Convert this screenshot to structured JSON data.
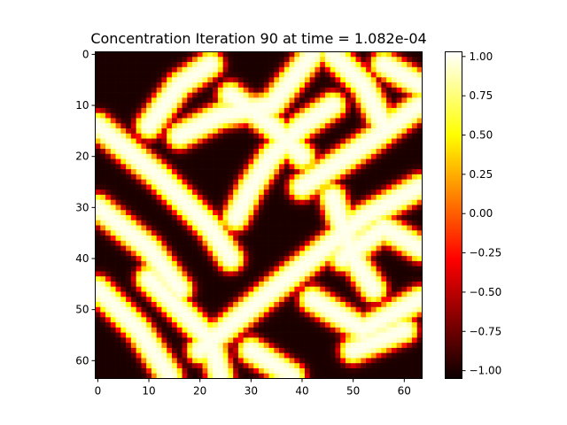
{
  "chart_data": {
    "type": "heatmap",
    "title": "Concentration Iteration 90 at time = 1.082e-04",
    "xlabel": "",
    "ylabel": "",
    "grid_size": 64,
    "xlim": [
      -0.5,
      63.5
    ],
    "ylim": [
      63.5,
      -0.5
    ],
    "x_ticks": [
      "0",
      "10",
      "20",
      "30",
      "40",
      "50",
      "60"
    ],
    "y_ticks": [
      "0",
      "10",
      "20",
      "30",
      "40",
      "50",
      "60"
    ],
    "colormap": "hot",
    "vmin": -1.05,
    "vmax": 1.03,
    "colorbar_ticks": [
      "1.00",
      "0.75",
      "0.50",
      "0.25",
      "0.00",
      "−0.25",
      "−0.50",
      "−0.75",
      "−1.00"
    ],
    "colors": {
      "low": "#0b0000",
      "mid_red": "#e60000",
      "mid_yellow": "#ffff20",
      "high": "#ffffff"
    },
    "bright_bands_approx": [
      {
        "note": "approximate ridges of high concentration, data units (x=col, y=row)",
        "pts": [
          [
            0,
            14
          ],
          [
            12,
            24
          ],
          [
            22,
            34
          ],
          [
            26,
            40
          ]
        ]
      },
      {
        "pts": [
          [
            0,
            30
          ],
          [
            10,
            38
          ],
          [
            16,
            46
          ]
        ]
      },
      {
        "pts": [
          [
            0,
            46
          ],
          [
            8,
            54
          ],
          [
            14,
            63
          ]
        ]
      },
      {
        "pts": [
          [
            10,
            44
          ],
          [
            22,
            56
          ],
          [
            24,
            63
          ]
        ]
      },
      {
        "pts": [
          [
            20,
            58
          ],
          [
            32,
            48
          ],
          [
            42,
            40
          ],
          [
            52,
            32
          ],
          [
            63,
            26
          ]
        ]
      },
      {
        "pts": [
          [
            27,
            32
          ],
          [
            30,
            26
          ],
          [
            34,
            20
          ],
          [
            40,
            14
          ],
          [
            46,
            10
          ]
        ]
      },
      {
        "pts": [
          [
            40,
            26
          ],
          [
            52,
            18
          ],
          [
            63,
            10
          ]
        ]
      },
      {
        "pts": [
          [
            46,
            28
          ],
          [
            50,
            40
          ],
          [
            54,
            46
          ]
        ]
      },
      {
        "pts": [
          [
            56,
            2
          ],
          [
            63,
            6
          ]
        ]
      },
      {
        "pts": [
          [
            16,
            16
          ],
          [
            24,
            12
          ],
          [
            34,
            10
          ],
          [
            42,
            0
          ]
        ]
      },
      {
        "pts": [
          [
            10,
            14
          ],
          [
            16,
            6
          ],
          [
            22,
            2
          ]
        ]
      },
      {
        "pts": [
          [
            26,
            8
          ],
          [
            34,
            14
          ],
          [
            40,
            20
          ]
        ]
      },
      {
        "pts": [
          [
            46,
            0
          ],
          [
            52,
            6
          ],
          [
            56,
            14
          ]
        ]
      },
      {
        "pts": [
          [
            48,
            40
          ],
          [
            56,
            34
          ],
          [
            63,
            38
          ]
        ]
      },
      {
        "pts": [
          [
            42,
            48
          ],
          [
            52,
            54
          ],
          [
            63,
            48
          ]
        ]
      },
      {
        "pts": [
          [
            30,
            58
          ],
          [
            38,
            63
          ]
        ]
      },
      {
        "pts": [
          [
            50,
            58
          ],
          [
            60,
            54
          ]
        ]
      }
    ]
  }
}
